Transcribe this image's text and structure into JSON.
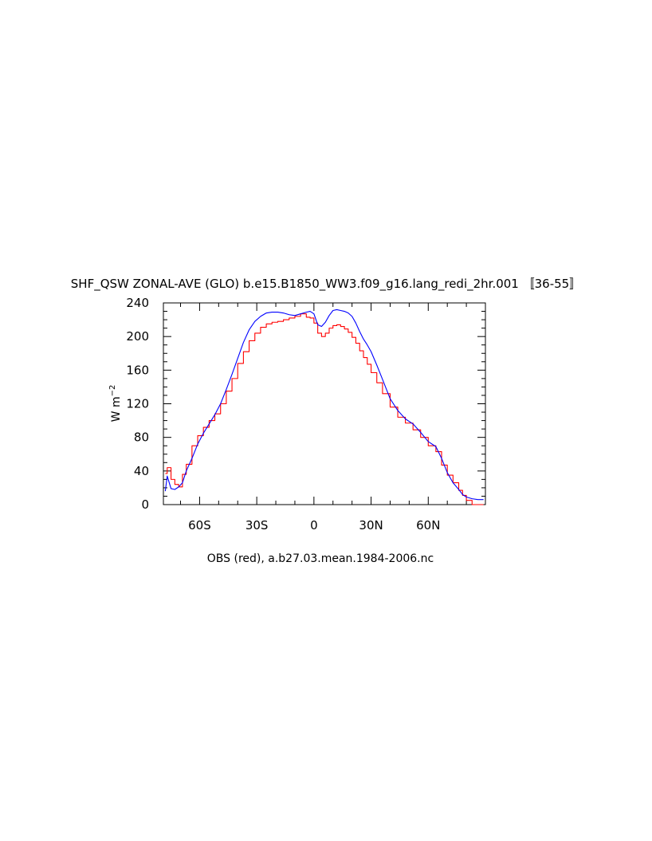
{
  "chart_data": {
    "type": "line",
    "title": "SHF_QSW ZONAL-AVE (GLO) b.e15.B1850_WW3.f09_g16.lang_redi_2hr.001 〚36-55〛",
    "xlabel": "",
    "ylabel_main": "W m",
    "ylabel_sup": "−2",
    "caption": "OBS (red), a.b27.03.mean.1984-2006.nc",
    "xlim": [
      -79,
      90
    ],
    "ylim": [
      0,
      240
    ],
    "x_ticks": [
      {
        "value": -60,
        "label": "60S"
      },
      {
        "value": -30,
        "label": "30S"
      },
      {
        "value": 0,
        "label": "0"
      },
      {
        "value": 30,
        "label": "30N"
      },
      {
        "value": 60,
        "label": "60N"
      }
    ],
    "y_ticks": [
      {
        "value": 0,
        "label": "0"
      },
      {
        "value": 40,
        "label": "40"
      },
      {
        "value": 80,
        "label": "80"
      },
      {
        "value": 120,
        "label": "120"
      },
      {
        "value": 160,
        "label": "160"
      },
      {
        "value": 200,
        "label": "200"
      },
      {
        "value": 240,
        "label": "240"
      }
    ],
    "grid": false,
    "series": [
      {
        "color": "#ff0000",
        "step": true,
        "x": [
          -78,
          -77,
          -75,
          -73,
          -71,
          -69,
          -67,
          -64,
          -61,
          -58,
          -55,
          -52,
          -49,
          -46,
          -43,
          -40,
          -37,
          -34,
          -31,
          -28,
          -25,
          -22,
          -19,
          -16,
          -13,
          -10,
          -7,
          -4,
          -2,
          0,
          2,
          4,
          6,
          8,
          10,
          12,
          14,
          16,
          18,
          20,
          22,
          24,
          26,
          28,
          30,
          33,
          36,
          40,
          44,
          48,
          52,
          56,
          60,
          64,
          67,
          70,
          73,
          76,
          78,
          80,
          83,
          86,
          89
        ],
        "values": [
          37,
          44,
          30,
          24,
          21,
          36,
          48,
          70,
          82,
          92,
          100,
          108,
          120,
          135,
          150,
          168,
          182,
          195,
          204,
          211,
          215,
          217,
          218,
          220,
          222,
          224,
          227,
          223,
          222,
          216,
          204,
          200,
          204,
          210,
          213,
          214,
          212,
          209,
          205,
          199,
          192,
          183,
          175,
          167,
          157,
          145,
          132,
          116,
          104,
          97,
          89,
          80,
          70,
          63,
          47,
          35,
          26,
          17,
          11,
          5,
          0,
          0,
          0
        ]
      },
      {
        "color": "#0000ff",
        "step": false,
        "x": [
          -78,
          -77,
          -75,
          -73,
          -71,
          -69,
          -67,
          -64,
          -61,
          -58,
          -55,
          -52,
          -49,
          -46,
          -43,
          -40,
          -37,
          -34,
          -31,
          -28,
          -25,
          -22,
          -19,
          -16,
          -13,
          -10,
          -7,
          -4,
          -2,
          0,
          2,
          4,
          6,
          8,
          10,
          12,
          14,
          16,
          18,
          20,
          22,
          24,
          26,
          28,
          30,
          33,
          36,
          40,
          44,
          48,
          52,
          56,
          60,
          64,
          67,
          70,
          73,
          76,
          78,
          80,
          83,
          86,
          89
        ],
        "values": [
          16,
          34,
          19,
          18,
          21,
          26,
          40,
          55,
          72,
          85,
          96,
          107,
          120,
          137,
          155,
          174,
          193,
          208,
          218,
          224,
          228,
          229,
          229,
          228,
          226,
          225,
          227,
          229,
          230,
          227,
          214,
          212,
          217,
          225,
          231,
          232,
          231,
          230,
          228,
          224,
          216,
          206,
          197,
          190,
          182,
          166,
          149,
          126,
          112,
          102,
          96,
          86,
          75,
          69,
          55,
          38,
          26,
          18,
          12,
          9,
          7,
          6,
          6
        ]
      }
    ]
  }
}
